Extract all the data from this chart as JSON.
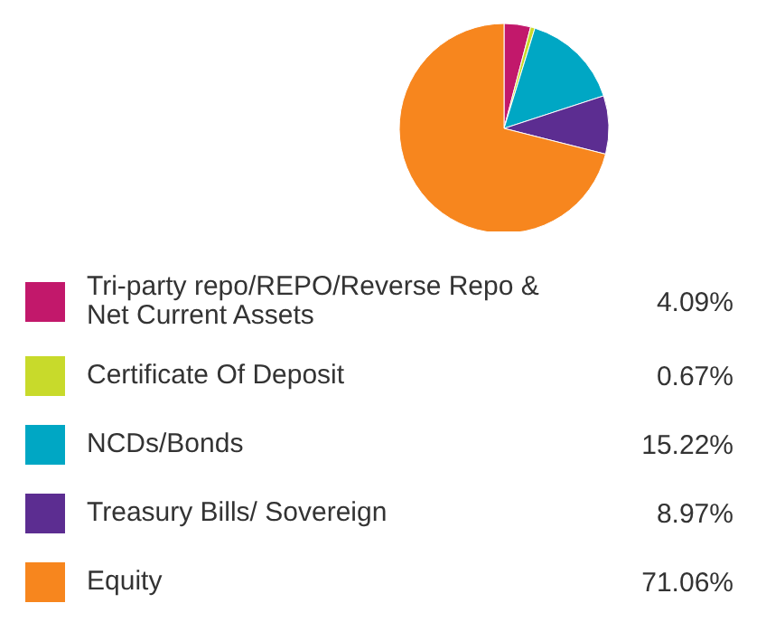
{
  "chart_data": {
    "type": "pie",
    "categories": [
      "Tri-party repo/REPO/Reverse Repo & Net Current Assets",
      "Certificate Of Deposit",
      "NCDs/Bonds",
      "Treasury Bills/ Sovereign",
      "Equity"
    ],
    "values": [
      4.09,
      0.67,
      15.22,
      8.97,
      71.06
    ],
    "colors": [
      "#c2186b",
      "#c8da2b",
      "#00a7c4",
      "#5c2d91",
      "#f7861e"
    ],
    "value_labels": [
      "4.09%",
      "0.67%",
      "15.22%",
      "8.97%",
      "71.06%"
    ],
    "legend": "bottom"
  }
}
